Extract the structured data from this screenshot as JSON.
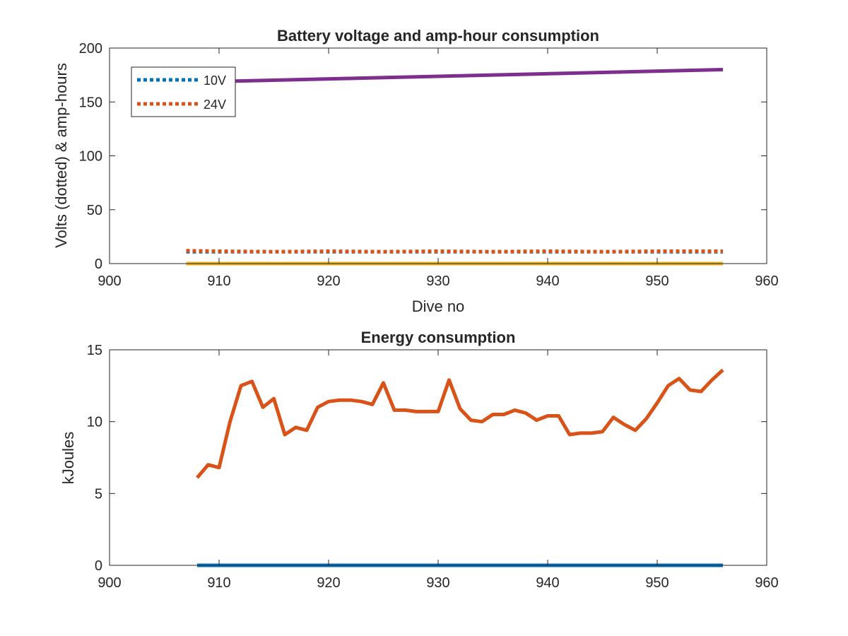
{
  "chart_data": [
    {
      "type": "line",
      "title": "Battery voltage and amp-hour consumption",
      "xlabel": "Dive no",
      "ylabel": "Volts (dotted) & amp-hours",
      "xlim": [
        900,
        960
      ],
      "ylim": [
        0,
        200
      ],
      "xticks": [
        900,
        910,
        920,
        930,
        940,
        950,
        960
      ],
      "yticks": [
        0,
        50,
        100,
        150,
        200
      ],
      "grid": false,
      "legend_placement": "top-left",
      "legend": [
        "10V",
        "24V"
      ],
      "series": [
        {
          "name": "10V",
          "style": "dotted",
          "color": "#0072BD",
          "x": [
            907,
            956
          ],
          "y": [
            11,
            11
          ]
        },
        {
          "name": "24V",
          "style": "dotted",
          "color": "#D95319",
          "x": [
            907,
            910,
            915,
            920,
            925,
            930,
            935,
            940,
            945,
            950,
            956
          ],
          "y": [
            12,
            11.5,
            11,
            11.5,
            11,
            11.5,
            11,
            11.5,
            11,
            11.5,
            11.5
          ]
        },
        {
          "style": "solid",
          "color": "#EDB120",
          "x": [
            907,
            956
          ],
          "y": [
            0,
            0
          ]
        },
        {
          "style": "solid",
          "color": "#7E2F8E",
          "x": [
            910,
            956
          ],
          "y": [
            169,
            180
          ]
        }
      ]
    },
    {
      "type": "line",
      "title": "Energy consumption",
      "xlabel": "",
      "ylabel": "kJoules",
      "xlim": [
        900,
        960
      ],
      "ylim": [
        0,
        15
      ],
      "xticks": [
        900,
        910,
        920,
        930,
        940,
        950,
        960
      ],
      "yticks": [
        0,
        5,
        10,
        15
      ],
      "grid": false,
      "series": [
        {
          "style": "solid",
          "color": "#0072BD",
          "x": [
            908,
            956
          ],
          "y": [
            0,
            0
          ]
        },
        {
          "style": "solid",
          "color": "#D95319",
          "x": [
            908,
            909,
            910,
            911,
            912,
            913,
            914,
            915,
            916,
            917,
            918,
            919,
            920,
            921,
            922,
            923,
            924,
            925,
            926,
            927,
            928,
            929,
            930,
            931,
            932,
            933,
            934,
            935,
            936,
            937,
            938,
            939,
            940,
            941,
            942,
            943,
            944,
            945,
            946,
            947,
            948,
            949,
            950,
            951,
            952,
            953,
            954,
            955,
            956
          ],
          "y": [
            6.1,
            7.0,
            6.8,
            10.0,
            12.5,
            12.8,
            11.0,
            11.6,
            9.1,
            9.6,
            9.4,
            11.0,
            11.4,
            11.5,
            11.5,
            11.4,
            11.2,
            12.7,
            10.8,
            10.8,
            10.7,
            10.7,
            10.7,
            12.9,
            10.9,
            10.1,
            10.0,
            10.5,
            10.5,
            10.8,
            10.6,
            10.1,
            10.4,
            10.4,
            9.1,
            9.2,
            9.2,
            9.3,
            10.3,
            9.8,
            9.4,
            10.2,
            11.3,
            12.5,
            13.0,
            12.2,
            12.1,
            12.9,
            13.6
          ]
        }
      ]
    }
  ]
}
